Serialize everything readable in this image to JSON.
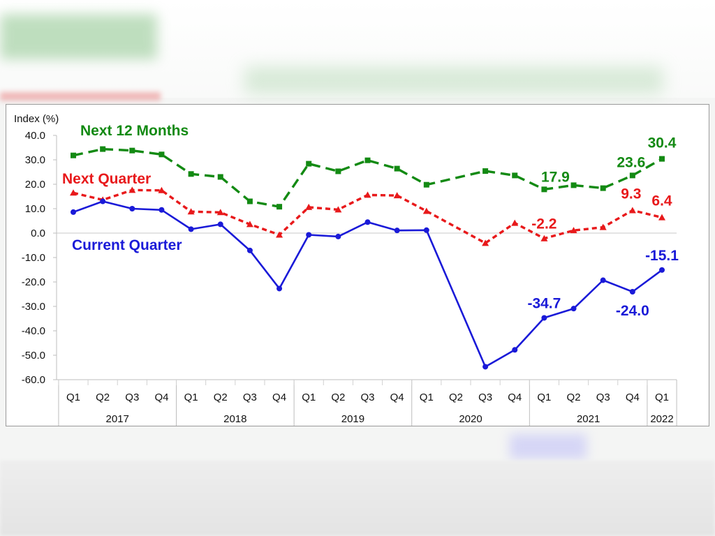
{
  "chart_data": {
    "type": "line",
    "ylabel": "Index (%)",
    "ylim": [
      -60,
      40
    ],
    "yticks": [
      "40.0",
      "30.0",
      "20.0",
      "10.0",
      "0.0",
      "-10.0",
      "-20.0",
      "-30.0",
      "-40.0",
      "-50.0",
      "-60.0"
    ],
    "categories": [
      "Q1",
      "Q2",
      "Q3",
      "Q4",
      "Q1",
      "Q2",
      "Q3",
      "Q4",
      "Q1",
      "Q2",
      "Q3",
      "Q4",
      "Q1",
      "Q2",
      "Q3",
      "Q4",
      "Q1",
      "Q2",
      "Q3",
      "Q4",
      "Q1"
    ],
    "years": [
      {
        "label": "2017",
        "start": 0,
        "end": 3
      },
      {
        "label": "2018",
        "start": 4,
        "end": 7
      },
      {
        "label": "2019",
        "start": 8,
        "end": 11
      },
      {
        "label": "2020",
        "start": 12,
        "end": 15
      },
      {
        "label": "2021",
        "start": 16,
        "end": 19
      },
      {
        "label": "2022",
        "start": 20,
        "end": 20
      }
    ],
    "grid": false,
    "series": [
      {
        "name": "Next 12 Months",
        "color": "#138a13",
        "style": "dashed",
        "marker": "square",
        "values": [
          31.8,
          34.4,
          33.8,
          32.2,
          24.2,
          23.0,
          13.0,
          10.8,
          28.4,
          25.3,
          29.8,
          26.4,
          19.8,
          null,
          25.4,
          23.6,
          17.9,
          19.6,
          18.4,
          23.6,
          30.4
        ]
      },
      {
        "name": "Next Quarter",
        "color": "#e8191b",
        "style": "dotted",
        "marker": "triangle",
        "values": [
          16.5,
          13.6,
          17.6,
          17.5,
          8.8,
          8.5,
          3.6,
          -0.7,
          10.6,
          9.6,
          15.6,
          15.4,
          9.0,
          null,
          -4.1,
          4.1,
          -2.2,
          1.1,
          2.4,
          9.3,
          6.4
        ]
      },
      {
        "name": "Current Quarter",
        "color": "#1a1ad8",
        "style": "solid",
        "marker": "circle",
        "values": [
          8.6,
          13.0,
          10.0,
          9.5,
          1.6,
          3.6,
          -7.1,
          -22.7,
          -0.7,
          -1.4,
          4.5,
          1.1,
          1.2,
          null,
          -54.7,
          -47.8,
          -34.7,
          -30.9,
          -19.3,
          -24.0,
          -15.1
        ]
      }
    ],
    "data_labels": [
      {
        "series": 0,
        "index": 16,
        "text": "17.9"
      },
      {
        "series": 0,
        "index": 19,
        "text": "23.6"
      },
      {
        "series": 0,
        "index": 20,
        "text": "30.4"
      },
      {
        "series": 1,
        "index": 16,
        "text": "-2.2"
      },
      {
        "series": 1,
        "index": 19,
        "text": "9.3"
      },
      {
        "series": 1,
        "index": 20,
        "text": "6.4"
      },
      {
        "series": 2,
        "index": 16,
        "text": "-34.7"
      },
      {
        "series": 2,
        "index": 19,
        "text": "-24.0"
      },
      {
        "series": 2,
        "index": 20,
        "text": "-15.1"
      }
    ]
  }
}
